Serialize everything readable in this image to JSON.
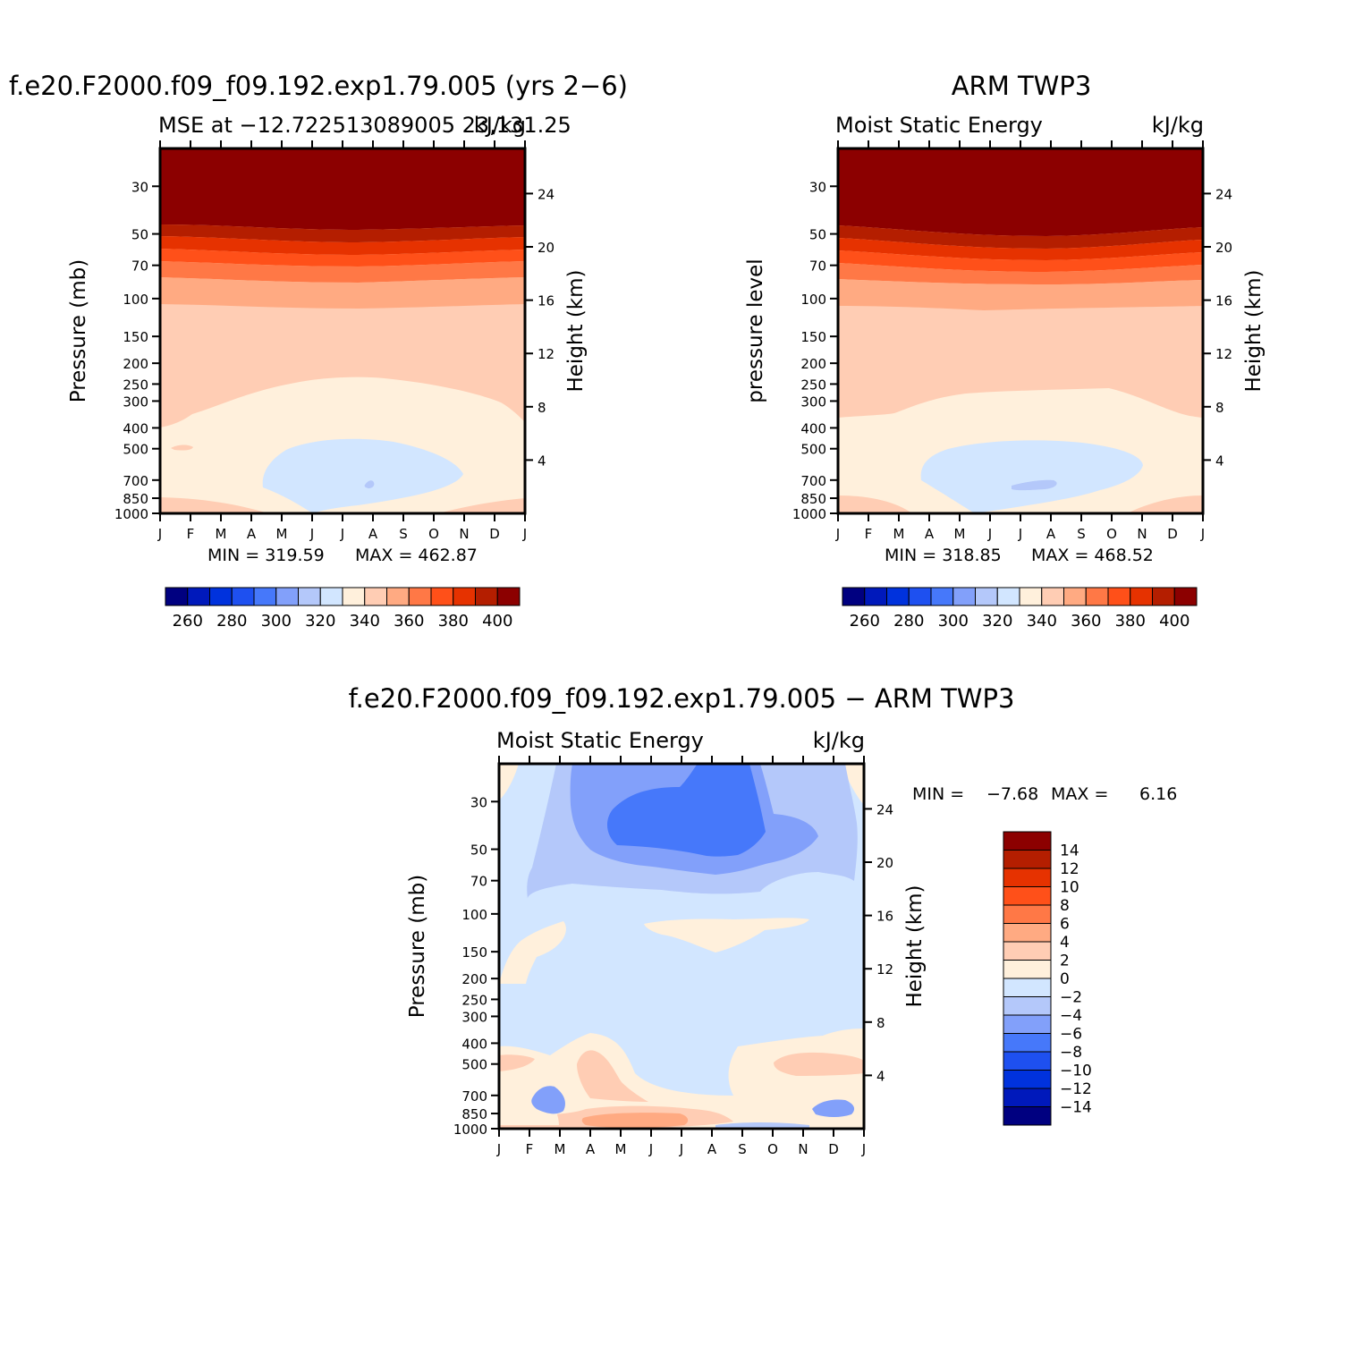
{
  "palette": {
    "mse": [
      "#000080",
      "#0019bb",
      "#0032dd",
      "#1e50f0",
      "#4678fa",
      "#82a0fa",
      "#b4c8fa",
      "#d2e6ff",
      "#fff0dc",
      "#ffcdb4",
      "#ffaa82",
      "#ff7846",
      "#ff5019",
      "#e63200",
      "#b41e00",
      "#8c0000"
    ],
    "diff": [
      "#000080",
      "#0019bb",
      "#0032dd",
      "#1e50f0",
      "#4678fa",
      "#82a0fa",
      "#b4c8fa",
      "#d2e6ff",
      "#fff0dc",
      "#ffcdb4",
      "#ffaa82",
      "#ff7846",
      "#ff5019",
      "#e63200",
      "#b41e00",
      "#8c0000"
    ]
  },
  "chart_data": [
    {
      "type": "heatmap",
      "title": "f.e20.F2000.f09_f09.192.exp1.79.005 (yrs 2−6)",
      "subtitle_left": "MSE at −12.722513089005 23,131.25",
      "subtitle_right": "kJ/kg",
      "ylabel": "Pressure  (mb)",
      "ylabel_right": "Height  (km)",
      "x": [
        "J",
        "F",
        "M",
        "A",
        "M",
        "J",
        "J",
        "A",
        "S",
        "O",
        "N",
        "D",
        "J"
      ],
      "y_ticks": [
        30,
        50,
        70,
        100,
        150,
        200,
        250,
        300,
        400,
        500,
        700,
        850,
        1000
      ],
      "y_right_ticks": [
        24,
        20,
        16,
        12,
        8,
        4
      ],
      "min_label": "MIN = 319.59",
      "max_label": "MAX = 462.87",
      "colorbar_labels": [
        "260",
        "280",
        "300",
        "320",
        "340",
        "360",
        "380",
        "400"
      ],
      "regions": [
        {
          "level": 15,
          "bounds": [
            0,
            52
          ]
        },
        {
          "level": 14,
          "bounds": [
            52,
            62
          ]
        },
        {
          "level": 13,
          "bounds": [
            62,
            77
          ]
        },
        {
          "level": 12,
          "bounds": [
            77,
            92
          ]
        },
        {
          "level": 11,
          "bounds": [
            92,
            110
          ]
        },
        {
          "level": 10,
          "bounds": [
            110,
            145
          ]
        },
        {
          "level": 9,
          "bounds": [
            145,
            400
          ]
        },
        {
          "level": 8,
          "bounds": [
            400,
            850
          ]
        },
        {
          "level": 9,
          "bounds": [
            850,
            1000
          ]
        }
      ]
    },
    {
      "type": "heatmap",
      "title": "ARM TWP3",
      "subtitle_left": "Moist Static Energy",
      "subtitle_right": "kJ/kg",
      "ylabel": "pressure level",
      "ylabel_right": "Height  (km)",
      "x": [
        "J",
        "F",
        "M",
        "A",
        "M",
        "J",
        "J",
        "A",
        "S",
        "O",
        "N",
        "D",
        "J"
      ],
      "y_ticks": [
        30,
        50,
        70,
        100,
        150,
        200,
        250,
        300,
        400,
        500,
        700,
        850,
        1000
      ],
      "y_right_ticks": [
        24,
        20,
        16,
        12,
        8,
        4
      ],
      "min_label": "MIN = 318.85",
      "max_label": "MAX = 468.52",
      "colorbar_labels": [
        "260",
        "280",
        "300",
        "320",
        "340",
        "360",
        "380",
        "400"
      ]
    },
    {
      "type": "heatmap",
      "title": "f.e20.F2000.f09_f09.192.exp1.79.005 − ARM TWP3",
      "subtitle_left": "Moist Static Energy",
      "subtitle_right": "kJ/kg",
      "ylabel": "Pressure  (mb)",
      "ylabel_right": "Height  (km)",
      "x": [
        "J",
        "F",
        "M",
        "A",
        "M",
        "J",
        "J",
        "A",
        "S",
        "O",
        "N",
        "D",
        "J"
      ],
      "y_ticks": [
        30,
        50,
        70,
        100,
        150,
        200,
        250,
        300,
        400,
        500,
        700,
        850,
        1000
      ],
      "y_right_ticks": [
        24,
        20,
        16,
        12,
        8,
        4
      ],
      "min_label": "MIN =",
      "min_value": "−7.68",
      "max_label": "MAX =",
      "max_value": "6.16",
      "colorbar_labels": [
        "14",
        "12",
        "10",
        "8",
        "6",
        "4",
        "2",
        "0",
        "−2",
        "−4",
        "−6",
        "−8",
        "−10",
        "−12",
        "−14"
      ]
    }
  ]
}
